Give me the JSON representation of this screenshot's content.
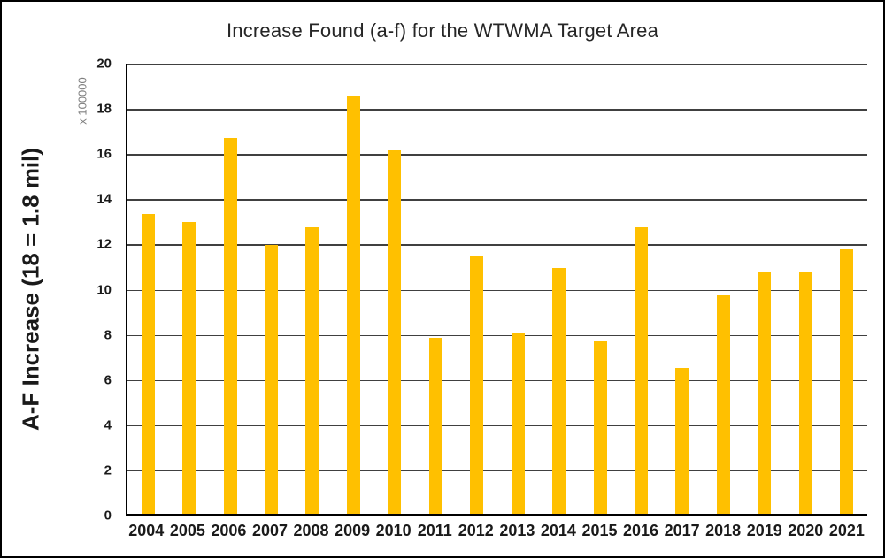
{
  "chart_data": {
    "type": "bar",
    "title": "Increase Found (a-f) for the WTWMA Target Area",
    "ylabel": "A-F Increase (18 = 1.8 mil)",
    "axis_multiplier_label": "x 100000",
    "xlabel": "",
    "categories": [
      "2004",
      "2005",
      "2006",
      "2007",
      "2008",
      "2009",
      "2010",
      "2011",
      "2012",
      "2013",
      "2014",
      "2015",
      "2016",
      "2017",
      "2018",
      "2019",
      "2020",
      "2021"
    ],
    "values": [
      13.25,
      12.9,
      16.65,
      11.9,
      12.7,
      18.5,
      16.1,
      7.8,
      11.4,
      8.0,
      10.9,
      7.65,
      12.7,
      6.45,
      9.65,
      10.7,
      10.7,
      11.7
    ],
    "ylim": [
      0,
      20
    ],
    "ytick_step": 2,
    "grid": true,
    "legend_position": "none",
    "colors": {
      "bar": "#FFC000",
      "gridline": "#404040",
      "axis": "#000000",
      "title_text": "#262626",
      "tick_text": "#1a1a1a",
      "multiplier_text": "#7f7f7f"
    }
  }
}
